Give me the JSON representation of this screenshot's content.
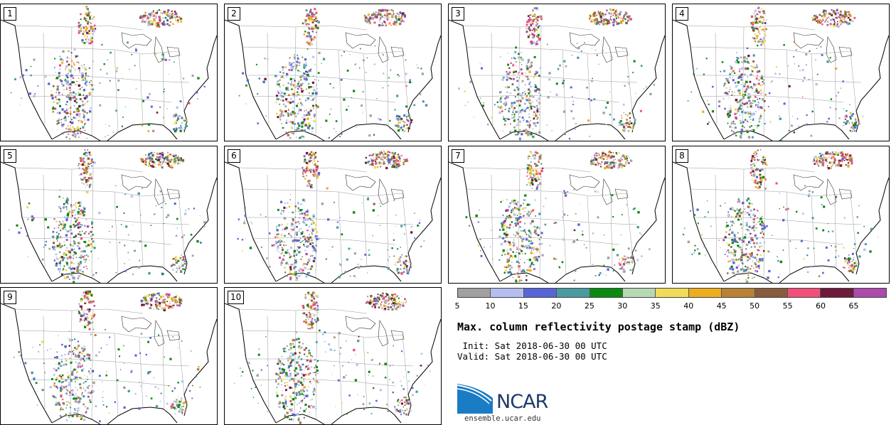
{
  "panels": [
    {
      "label": "1"
    },
    {
      "label": "2"
    },
    {
      "label": "3"
    },
    {
      "label": "4"
    },
    {
      "label": "5"
    },
    {
      "label": "6"
    },
    {
      "label": "7"
    },
    {
      "label": "8"
    },
    {
      "label": "9"
    },
    {
      "label": "10"
    }
  ],
  "colorbar": {
    "colors": [
      "#a0a0a0",
      "#b4bff0",
      "#5865d6",
      "#4a9aa0",
      "#0a8a10",
      "#b6d8b4",
      "#f0dc5a",
      "#ecae1e",
      "#b98232",
      "#8a5a3c",
      "#f0507a",
      "#6e1a3c",
      "#ac4aac"
    ],
    "ticks": [
      "5",
      "10",
      "15",
      "20",
      "25",
      "30",
      "35",
      "40",
      "45",
      "50",
      "55",
      "60",
      "65"
    ]
  },
  "title": "Max. column reflectivity postage stamp (dBZ)",
  "init_text": " Init: Sat 2018-06-30 00 UTC",
  "valid_text": "Valid: Sat 2018-06-30 00 UTC",
  "logo": {
    "text": "NCAR",
    "url": "ensemble.ucar.edu",
    "color": "#1f3a6b",
    "accent": "#1a7cc4"
  }
}
